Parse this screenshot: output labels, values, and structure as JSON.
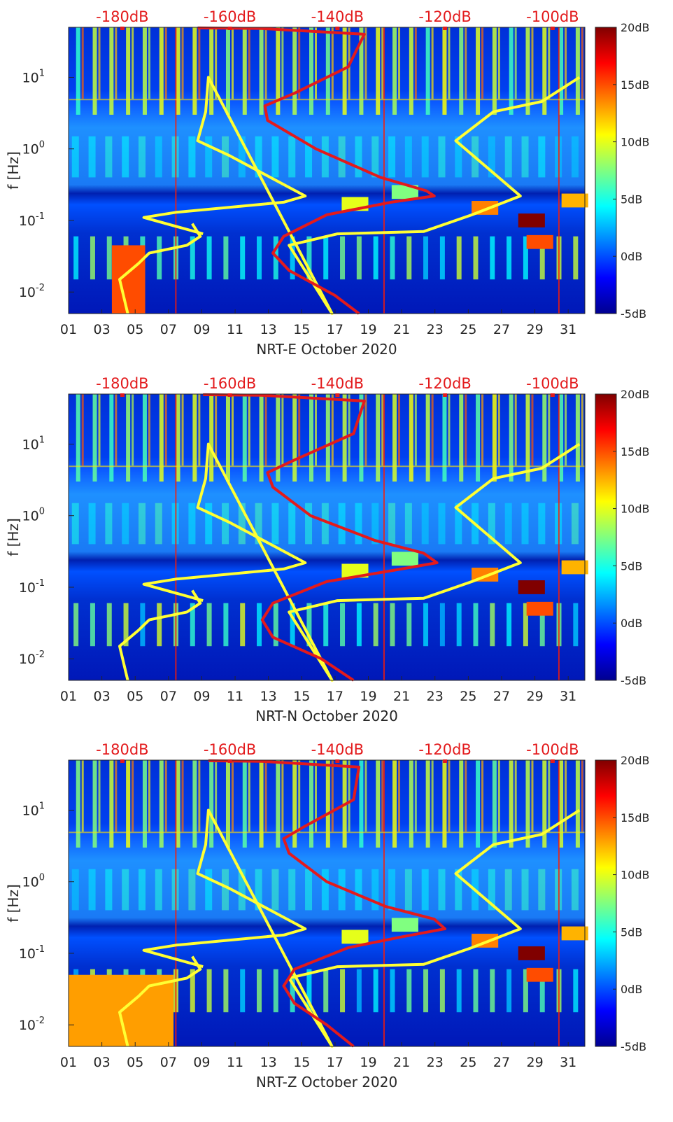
{
  "colors": {
    "noise_model": "#ffff33",
    "median_psd": "#e31a1c",
    "top_axis_text": "#e31a1c",
    "colormap": [
      "#00008f",
      "#0000ff",
      "#0080ff",
      "#00ffff",
      "#80ff80",
      "#ffff00",
      "#ff8000",
      "#ff0000",
      "#800000"
    ]
  },
  "chart_data": [
    {
      "type": "heatmap",
      "xlabel": "NRT-E October 2020",
      "ylabel": "f [Hz]",
      "yscale": "log",
      "ylim": [
        0.005,
        50
      ],
      "xlim": [
        1,
        32
      ],
      "x_ticks": [
        "01",
        "03",
        "05",
        "07",
        "09",
        "11",
        "13",
        "15",
        "17",
        "19",
        "21",
        "23",
        "25",
        "27",
        "29",
        "31"
      ],
      "x_tick_values": [
        1,
        3,
        5,
        7,
        9,
        11,
        13,
        15,
        17,
        19,
        21,
        23,
        25,
        27,
        29,
        31
      ],
      "y_ticks": [
        {
          "base": "10",
          "exp": "1",
          "value": 10
        },
        {
          "base": "10",
          "exp": "0",
          "value": 1
        },
        {
          "base": "10",
          "exp": "-1",
          "value": 0.1
        },
        {
          "base": "10",
          "exp": "-2",
          "value": 0.01
        }
      ],
      "top_axis": {
        "ticks": [
          "-180dB",
          "-160dB",
          "-140dB",
          "-120dB",
          "-100dB"
        ],
        "values": [
          -180,
          -160,
          -140,
          -120,
          -100
        ],
        "range": [
          -190,
          -94
        ]
      },
      "colorbar": {
        "ticks": [
          "20dB",
          "15dB",
          "10dB",
          "5dB",
          "0dB",
          "-5dB"
        ],
        "values": [
          20,
          15,
          10,
          5,
          0,
          -5
        ],
        "range": [
          -5,
          20
        ]
      },
      "series": [
        {
          "role": "noise_model",
          "points": [
            [
              -179,
              0.005
            ],
            [
              -180.5,
              0.015
            ],
            [
              -177,
              0.025
            ],
            [
              -175,
              0.035
            ],
            [
              -168,
              0.045
            ],
            [
              -165.5,
              0.06
            ],
            [
              -167,
              0.09
            ],
            [
              -165,
              0.065
            ],
            [
              -176,
              0.11
            ],
            [
              -170,
              0.13
            ],
            [
              -150,
              0.18
            ],
            [
              -146,
              0.22
            ],
            [
              -160,
              0.8
            ],
            [
              -166,
              1.3
            ],
            [
              -164.5,
              3.3
            ],
            [
              -164,
              10
            ],
            [
              -141,
              0.005
            ],
            [
              -149,
              0.045
            ],
            [
              -140,
              0.065
            ],
            [
              -124,
              0.07
            ],
            [
              -115,
              0.12
            ],
            [
              -106,
              0.22
            ],
            [
              -118,
              1.3
            ],
            [
              -111,
              3.3
            ],
            [
              -102,
              4.6
            ],
            [
              -95,
              10
            ]
          ]
        },
        {
          "role": "median_psd",
          "points": [
            [
              -136,
              0.005
            ],
            [
              -140.5,
              0.009
            ],
            [
              -149,
              0.02
            ],
            [
              -152,
              0.035
            ],
            [
              -150,
              0.06
            ],
            [
              -142,
              0.12
            ],
            [
              -130,
              0.18
            ],
            [
              -122,
              0.22
            ],
            [
              -123.5,
              0.26
            ],
            [
              -132,
              0.4
            ],
            [
              -144,
              1.0
            ],
            [
              -153,
              2.5
            ],
            [
              -153.5,
              4
            ],
            [
              -148,
              6
            ],
            [
              -138,
              14
            ],
            [
              -135,
              40
            ],
            [
              -154,
              48
            ],
            [
              -166,
              49
            ]
          ]
        }
      ],
      "note_values": "Heatmap cells are power in dB relative to median, -5 to 20"
    },
    {
      "type": "heatmap",
      "xlabel": "NRT-N October 2020",
      "ylabel": "f [Hz]",
      "yscale": "log",
      "ylim": [
        0.005,
        50
      ],
      "xlim": [
        1,
        32
      ],
      "x_ticks": [
        "01",
        "03",
        "05",
        "07",
        "09",
        "11",
        "13",
        "15",
        "17",
        "19",
        "21",
        "23",
        "25",
        "27",
        "29",
        "31"
      ],
      "x_tick_values": [
        1,
        3,
        5,
        7,
        9,
        11,
        13,
        15,
        17,
        19,
        21,
        23,
        25,
        27,
        29,
        31
      ],
      "y_ticks": [
        {
          "base": "10",
          "exp": "1",
          "value": 10
        },
        {
          "base": "10",
          "exp": "0",
          "value": 1
        },
        {
          "base": "10",
          "exp": "-1",
          "value": 0.1
        },
        {
          "base": "10",
          "exp": "-2",
          "value": 0.01
        }
      ],
      "top_axis": {
        "ticks": [
          "-180dB",
          "-160dB",
          "-140dB",
          "-120dB",
          "-100dB"
        ],
        "values": [
          -180,
          -160,
          -140,
          -120,
          -100
        ],
        "range": [
          -190,
          -94
        ]
      },
      "colorbar": {
        "ticks": [
          "20dB",
          "15dB",
          "10dB",
          "5dB",
          "0dB",
          "-5dB"
        ],
        "values": [
          20,
          15,
          10,
          5,
          0,
          -5
        ],
        "range": [
          -5,
          20
        ]
      },
      "series": [
        {
          "role": "noise_model",
          "points": [
            [
              -179,
              0.005
            ],
            [
              -180.5,
              0.015
            ],
            [
              -177,
              0.025
            ],
            [
              -175,
              0.035
            ],
            [
              -168,
              0.045
            ],
            [
              -165.5,
              0.06
            ],
            [
              -167,
              0.09
            ],
            [
              -165,
              0.065
            ],
            [
              -176,
              0.11
            ],
            [
              -170,
              0.13
            ],
            [
              -150,
              0.18
            ],
            [
              -146,
              0.22
            ],
            [
              -160,
              0.8
            ],
            [
              -166,
              1.3
            ],
            [
              -164.5,
              3.3
            ],
            [
              -164,
              10
            ],
            [
              -141,
              0.005
            ],
            [
              -149,
              0.045
            ],
            [
              -140,
              0.065
            ],
            [
              -124,
              0.07
            ],
            [
              -115,
              0.12
            ],
            [
              -106,
              0.22
            ],
            [
              -118,
              1.3
            ],
            [
              -111,
              3.3
            ],
            [
              -102,
              4.6
            ],
            [
              -95,
              10
            ]
          ]
        },
        {
          "role": "median_psd",
          "points": [
            [
              -137,
              0.005
            ],
            [
              -143,
              0.01
            ],
            [
              -152,
              0.02
            ],
            [
              -154,
              0.035
            ],
            [
              -152,
              0.06
            ],
            [
              -142,
              0.12
            ],
            [
              -130,
              0.17
            ],
            [
              -121.5,
              0.22
            ],
            [
              -124,
              0.3
            ],
            [
              -133,
              0.45
            ],
            [
              -145,
              1.0
            ],
            [
              -152,
              2.5
            ],
            [
              -153,
              4
            ],
            [
              -148,
              6
            ],
            [
              -137,
              14
            ],
            [
              -135,
              40
            ],
            [
              -154,
              48
            ],
            [
              -165,
              49
            ]
          ]
        }
      ]
    },
    {
      "type": "heatmap",
      "xlabel": "NRT-Z October 2020",
      "ylabel": "f [Hz]",
      "yscale": "log",
      "ylim": [
        0.005,
        50
      ],
      "xlim": [
        1,
        32
      ],
      "x_ticks": [
        "01",
        "03",
        "05",
        "07",
        "09",
        "11",
        "13",
        "15",
        "17",
        "19",
        "21",
        "23",
        "25",
        "27",
        "29",
        "31"
      ],
      "x_tick_values": [
        1,
        3,
        5,
        7,
        9,
        11,
        13,
        15,
        17,
        19,
        21,
        23,
        25,
        27,
        29,
        31
      ],
      "y_ticks": [
        {
          "base": "10",
          "exp": "1",
          "value": 10
        },
        {
          "base": "10",
          "exp": "0",
          "value": 1
        },
        {
          "base": "10",
          "exp": "-1",
          "value": 0.1
        },
        {
          "base": "10",
          "exp": "-2",
          "value": 0.01
        }
      ],
      "top_axis": {
        "ticks": [
          "-180dB",
          "-160dB",
          "-140dB",
          "-120dB",
          "-100dB"
        ],
        "values": [
          -180,
          -160,
          -140,
          -120,
          -100
        ],
        "range": [
          -190,
          -94
        ]
      },
      "colorbar": {
        "ticks": [
          "20dB",
          "15dB",
          "10dB",
          "5dB",
          "0dB",
          "-5dB"
        ],
        "values": [
          20,
          15,
          10,
          5,
          0,
          -5
        ],
        "range": [
          -5,
          20
        ]
      },
      "series": [
        {
          "role": "noise_model",
          "points": [
            [
              -179,
              0.005
            ],
            [
              -180.5,
              0.015
            ],
            [
              -177,
              0.025
            ],
            [
              -175,
              0.035
            ],
            [
              -168,
              0.045
            ],
            [
              -165.5,
              0.06
            ],
            [
              -167,
              0.09
            ],
            [
              -165,
              0.065
            ],
            [
              -176,
              0.11
            ],
            [
              -170,
              0.13
            ],
            [
              -150,
              0.18
            ],
            [
              -146,
              0.22
            ],
            [
              -160,
              0.8
            ],
            [
              -166,
              1.3
            ],
            [
              -164.5,
              3.3
            ],
            [
              -164,
              10
            ],
            [
              -141,
              0.005
            ],
            [
              -149,
              0.045
            ],
            [
              -140,
              0.065
            ],
            [
              -124,
              0.07
            ],
            [
              -115,
              0.12
            ],
            [
              -106,
              0.22
            ],
            [
              -118,
              1.3
            ],
            [
              -111,
              3.3
            ],
            [
              -102,
              4.6
            ],
            [
              -95,
              10
            ]
          ]
        },
        {
          "role": "median_psd",
          "points": [
            [
              -137,
              0.005
            ],
            [
              -142,
              0.01
            ],
            [
              -148,
              0.02
            ],
            [
              -150,
              0.035
            ],
            [
              -148,
              0.06
            ],
            [
              -138,
              0.12
            ],
            [
              -128,
              0.17
            ],
            [
              -120,
              0.22
            ],
            [
              -122,
              0.3
            ],
            [
              -131,
              0.45
            ],
            [
              -142,
              1.0
            ],
            [
              -149,
              2.5
            ],
            [
              -150,
              4
            ],
            [
              -146,
              6
            ],
            [
              -137,
              14
            ],
            [
              -136,
              40
            ],
            [
              -154,
              48
            ],
            [
              -164,
              49
            ]
          ]
        }
      ]
    }
  ]
}
